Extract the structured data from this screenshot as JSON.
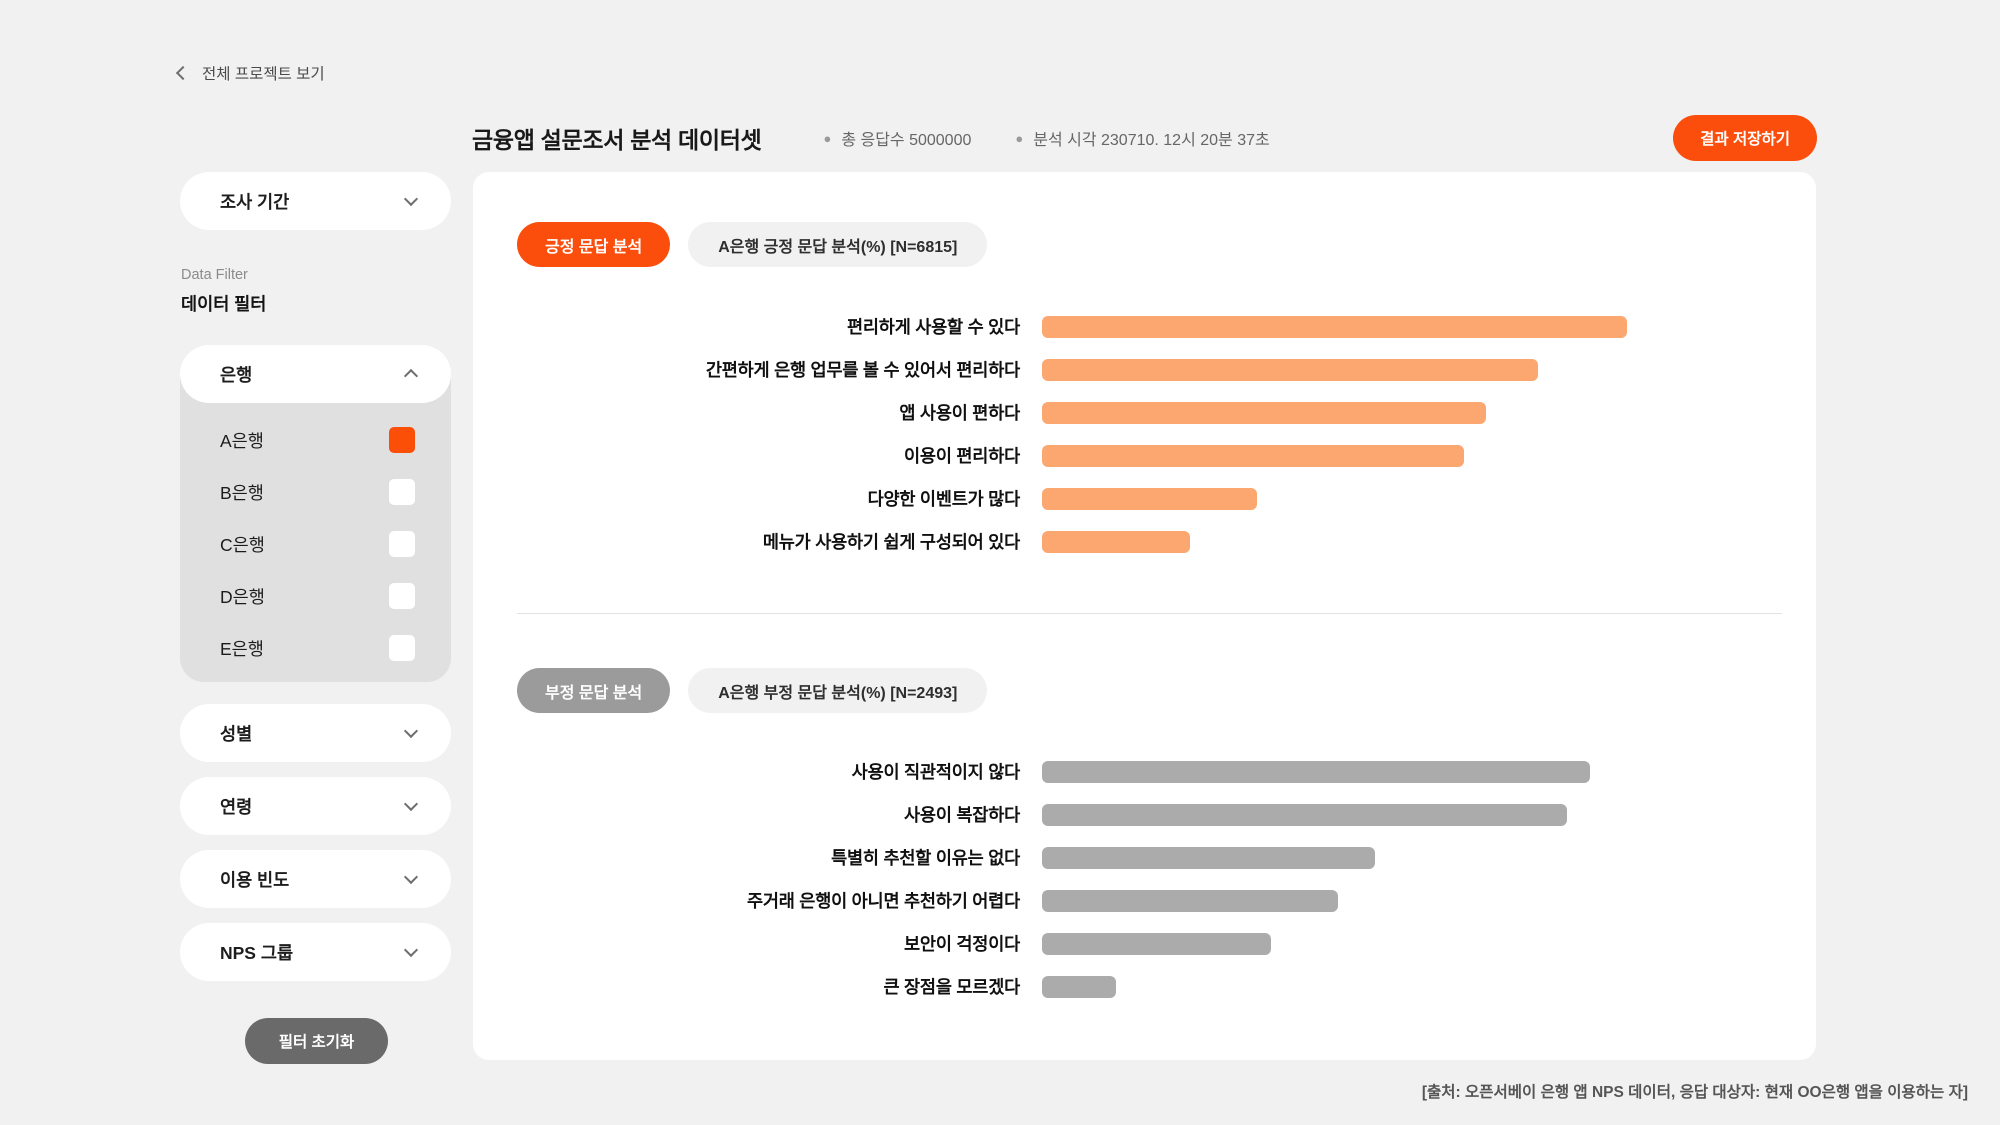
{
  "page": {
    "back_link": "전체 프로젝트 보기",
    "source_note": "[출처: 오픈서베이 은행 앱 NPS 데이터, 응답 대상자: 현재 OO은행 앱을 이용하는 자]"
  },
  "header": {
    "title": "금융앱 설문조서 분석 데이터셋",
    "meta": [
      {
        "text": "총 응답수 5000000"
      },
      {
        "text": "분석 시각 230710. 12시 20분 37초"
      }
    ],
    "save_button": "결과 저장하기"
  },
  "sidebar": {
    "period_filter": "조사 기간",
    "data_filter_en": "Data Filter",
    "data_filter_ko": "데이터 필터",
    "bank_group": {
      "label": "은행",
      "options": [
        {
          "label": "A은행",
          "checked": true
        },
        {
          "label": "B은행",
          "checked": false
        },
        {
          "label": "C은행",
          "checked": false
        },
        {
          "label": "D은행",
          "checked": false
        },
        {
          "label": "E은행",
          "checked": false
        }
      ]
    },
    "collapsed_filters": [
      "성별",
      "연령",
      "이용 빈도",
      "NPS 그룹"
    ],
    "reset_button": "필터 초기화"
  },
  "icons": {
    "back": "chevron-left",
    "collapsed": "chevron-down",
    "expanded": "chevron-up"
  },
  "colors": {
    "accent_orange": "#FB4E0C",
    "bar_orange": "#FBA76F",
    "bar_gray": "#ABABAB",
    "toggle_gray": "#9B9B9B",
    "panel_gray": "#E0E0E1",
    "page_bg": "#F1F1F2"
  },
  "chart_data": [
    {
      "type": "bar",
      "orientation": "horizontal",
      "button_label": "긍정 문답 분석",
      "title": "A은행 긍정 문답 분석(%) [N=6815]",
      "color": "#FBA76F",
      "categories": [
        "편리하게 사용할 수 있다",
        "간편하게 은행 업무를 볼 수 있어서 편리하다",
        "앱 사용이 편하다",
        "이용이 편리하다",
        "다양한 이벤트가 많다",
        "메뉴가 사용하기 쉽게 구성되어 있다"
      ],
      "values": [
        79,
        67,
        60,
        57,
        29,
        20
      ],
      "xlim": [
        0,
        100
      ],
      "value_labels_shown": false,
      "grid": false
    },
    {
      "type": "bar",
      "orientation": "horizontal",
      "button_label": "부정 문답 분석",
      "title": "A은행 부정 문답 분석(%) [N=2493]",
      "color": "#ABABAB",
      "categories": [
        "사용이 직관적이지 않다",
        "사용이 복잡하다",
        "특별히 추천할 이유는 없다",
        "주거래 은행이 아니면 추천하기 어렵다",
        "보안이 걱정이다",
        "큰 장점을 모르겠다"
      ],
      "values": [
        74,
        71,
        45,
        40,
        31,
        10
      ],
      "xlim": [
        0,
        100
      ],
      "value_labels_shown": false,
      "grid": false
    }
  ]
}
